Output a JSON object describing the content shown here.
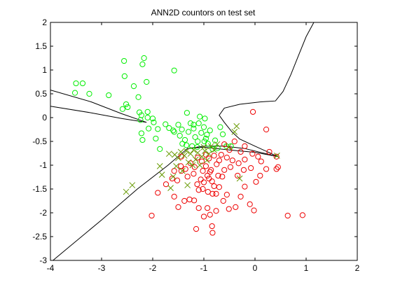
{
  "chart_data": {
    "type": "scatter",
    "title": "ANN2D countors on test set",
    "xlabel": "",
    "ylabel": "",
    "xlim": [
      -4,
      2
    ],
    "ylim": [
      -3,
      2
    ],
    "xticks": [
      -4,
      -3,
      -2,
      -1,
      0,
      1,
      2
    ],
    "yticks": [
      2,
      1.5,
      1,
      0.5,
      0,
      -0.5,
      -1,
      -1.5,
      -2,
      -2.5,
      -3
    ],
    "grid": false,
    "legend": "none",
    "colors": {
      "green": "#00ee00",
      "red": "#ee0000",
      "cross": "#669900",
      "contour": "#000000"
    },
    "series": [
      {
        "marker": "circle",
        "color": "#00ee00",
        "points": [
          [
            -3.5,
            0.72
          ],
          [
            -3.37,
            0.72
          ],
          [
            -3.52,
            0.52
          ],
          [
            -3.24,
            0.5
          ],
          [
            -2.86,
            0.47
          ],
          [
            -2.56,
            1.19
          ],
          [
            -2.17,
            1.25
          ],
          [
            -2.2,
            1.12
          ],
          [
            -2.55,
            0.87
          ],
          [
            -1.58,
            0.99
          ],
          [
            -2.12,
            0.75
          ],
          [
            -2.37,
            0.66
          ],
          [
            -2.52,
            0.28
          ],
          [
            -2.28,
            0.43
          ],
          [
            -2.59,
            0.18
          ],
          [
            -2.49,
            0.22
          ],
          [
            -2.26,
            0.11
          ],
          [
            -2.22,
            0.05
          ],
          [
            -2.24,
            -0.05
          ],
          [
            -2.1,
            0.12
          ],
          [
            -2.1,
            0.0
          ],
          [
            -2.0,
            -0.02
          ],
          [
            -1.98,
            -0.1
          ],
          [
            -2.22,
            -0.33
          ],
          [
            -2.2,
            -0.47
          ],
          [
            -2.08,
            -0.23
          ],
          [
            -1.94,
            -0.44
          ],
          [
            -1.86,
            -0.66
          ],
          [
            -1.9,
            -0.24
          ],
          [
            -1.75,
            -0.14
          ],
          [
            -1.68,
            -0.22
          ],
          [
            -1.6,
            -0.27
          ],
          [
            -1.58,
            -0.3
          ],
          [
            -1.5,
            -0.15
          ],
          [
            -1.43,
            -0.25
          ],
          [
            -1.47,
            -0.38
          ],
          [
            -1.37,
            -0.47
          ],
          [
            -1.34,
            -0.58
          ],
          [
            -1.3,
            -0.3
          ],
          [
            -1.26,
            -0.12
          ],
          [
            -1.33,
            0.1
          ],
          [
            -1.2,
            -0.23
          ],
          [
            -1.17,
            -0.41
          ],
          [
            -1.12,
            -0.5
          ],
          [
            -1.05,
            -0.32
          ],
          [
            -1.0,
            -0.2
          ],
          [
            -1.08,
            0.02
          ],
          [
            -0.98,
            -0.02
          ],
          [
            -0.96,
            -0.44
          ],
          [
            -0.92,
            -0.55
          ],
          [
            -0.88,
            -0.27
          ],
          [
            -0.83,
            -0.66
          ],
          [
            -0.78,
            -0.48
          ],
          [
            -0.73,
            -0.64
          ],
          [
            -0.68,
            -0.2
          ],
          [
            -0.63,
            -0.35
          ],
          [
            -0.56,
            -0.6
          ],
          [
            -0.47,
            -0.6
          ],
          [
            -1.13,
            -0.62
          ],
          [
            -1.23,
            -0.6
          ],
          [
            -1.42,
            -0.55
          ],
          [
            -0.94,
            -0.36
          ],
          [
            -1.1,
            -0.12
          ],
          [
            -1.2,
            -0.15
          ],
          [
            -0.99,
            -0.5
          ]
        ]
      },
      {
        "marker": "circle",
        "color": "#ee0000",
        "points": [
          [
            -0.04,
            0.12
          ],
          [
            0.22,
            -0.25
          ],
          [
            -0.2,
            -0.6
          ],
          [
            -0.05,
            -0.76
          ],
          [
            0.06,
            -0.82
          ],
          [
            0.12,
            -0.92
          ],
          [
            0.28,
            -0.72
          ],
          [
            0.42,
            -0.82
          ],
          [
            0.45,
            -1.04
          ],
          [
            0.42,
            -1.08
          ],
          [
            0.22,
            -1.08
          ],
          [
            0.1,
            -1.22
          ],
          [
            0.02,
            -1.35
          ],
          [
            -0.08,
            -1.06
          ],
          [
            -0.22,
            -1.1
          ],
          [
            -0.34,
            -1.22
          ],
          [
            -0.48,
            -1.04
          ],
          [
            -0.6,
            -1.1
          ],
          [
            -0.64,
            -1.24
          ],
          [
            -0.75,
            -0.98
          ],
          [
            -0.86,
            -1.1
          ],
          [
            -0.93,
            -1.22
          ],
          [
            -1.02,
            -1.12
          ],
          [
            -1.06,
            -1.3
          ],
          [
            -1.13,
            -1.4
          ],
          [
            -1.02,
            -1.5
          ],
          [
            -0.92,
            -1.56
          ],
          [
            -0.83,
            -1.6
          ],
          [
            -0.76,
            -1.6
          ],
          [
            -0.7,
            -1.46
          ],
          [
            -0.62,
            -1.75
          ],
          [
            -0.55,
            -1.62
          ],
          [
            -0.51,
            -1.92
          ],
          [
            -0.38,
            -1.88
          ],
          [
            -0.28,
            -1.66
          ],
          [
            -0.2,
            -1.45
          ],
          [
            -0.1,
            -1.82
          ],
          [
            -0.02,
            -1.95
          ],
          [
            0.93,
            -2.05
          ],
          [
            0.64,
            -2.06
          ],
          [
            -0.76,
            -1.96
          ],
          [
            -0.88,
            -2.04
          ],
          [
            -0.93,
            -1.9
          ],
          [
            -1.0,
            -2.08
          ],
          [
            -1.1,
            -1.9
          ],
          [
            -1.19,
            -1.74
          ],
          [
            -1.28,
            -1.72
          ],
          [
            -1.38,
            -1.75
          ],
          [
            -1.5,
            -1.88
          ],
          [
            -1.58,
            -1.66
          ],
          [
            -1.52,
            -1.32
          ],
          [
            -1.74,
            -1.4
          ],
          [
            -1.9,
            -1.58
          ],
          [
            -2.02,
            -2.06
          ],
          [
            -1.15,
            -2.34
          ],
          [
            -0.83,
            -2.42
          ],
          [
            -0.84,
            -2.28
          ],
          [
            -1.36,
            -1.08
          ],
          [
            -1.26,
            -0.96
          ],
          [
            -1.18,
            -1.04
          ],
          [
            -1.12,
            -0.84
          ],
          [
            -1.04,
            -0.92
          ],
          [
            -0.96,
            -0.78
          ],
          [
            -0.9,
            -0.86
          ],
          [
            -0.8,
            -0.8
          ],
          [
            -0.7,
            -0.9
          ],
          [
            -0.66,
            -0.78
          ],
          [
            -0.55,
            -0.84
          ],
          [
            -0.44,
            -0.9
          ],
          [
            -0.32,
            -0.96
          ],
          [
            -0.2,
            -0.88
          ],
          [
            -0.96,
            -1.02
          ],
          [
            -1.2,
            -1.18
          ],
          [
            -1.32,
            -1.24
          ],
          [
            -1.44,
            -1.12
          ],
          [
            -1.0,
            -1.36
          ],
          [
            -0.84,
            -1.34
          ],
          [
            -0.72,
            -1.22
          ],
          [
            -1.1,
            -1.52
          ],
          [
            -0.9,
            -1.28
          ],
          [
            -0.8,
            -1.44
          ],
          [
            -1.45,
            -1.02
          ],
          [
            -1.58,
            -1.12
          ],
          [
            -1.62,
            -1.28
          ],
          [
            -0.4,
            -0.5
          ],
          [
            -0.6,
            -0.56
          ],
          [
            -0.28,
            -0.72
          ],
          [
            -0.5,
            -0.68
          ],
          [
            -1.44,
            -0.82
          ],
          [
            -0.88,
            -1.14
          ]
        ]
      },
      {
        "marker": "x",
        "color": "#669900",
        "points": [
          [
            -2.4,
            -1.42
          ],
          [
            -2.52,
            -1.56
          ],
          [
            -1.86,
            -1.02
          ],
          [
            -1.82,
            -1.2
          ],
          [
            -1.68,
            -0.76
          ],
          [
            -1.6,
            -1.24
          ],
          [
            -1.57,
            -0.78
          ],
          [
            -1.5,
            -0.85
          ],
          [
            -1.45,
            -0.72
          ],
          [
            -1.38,
            -0.8
          ],
          [
            -1.34,
            -0.7
          ],
          [
            -1.3,
            -0.94
          ],
          [
            -1.26,
            -0.76
          ],
          [
            -1.2,
            -0.68
          ],
          [
            -1.16,
            -0.88
          ],
          [
            -1.12,
            -0.74
          ],
          [
            -1.08,
            -1.0
          ],
          [
            -1.04,
            -0.82
          ],
          [
            -0.98,
            -0.7
          ],
          [
            -0.94,
            -0.9
          ],
          [
            -0.9,
            -0.76
          ],
          [
            -0.86,
            -0.6
          ],
          [
            -0.8,
            -0.68
          ],
          [
            -0.74,
            -0.56
          ],
          [
            -0.52,
            -0.62
          ],
          [
            -0.4,
            -0.3
          ],
          [
            -0.36,
            -0.18
          ],
          [
            -0.3,
            -1.28
          ],
          [
            -1.65,
            -1.48
          ],
          [
            -1.42,
            -1.12
          ],
          [
            -1.22,
            -1.0
          ],
          [
            -1.32,
            -1.42
          ],
          [
            0.43,
            -0.8
          ],
          [
            -1.0,
            -0.62
          ],
          [
            -1.54,
            -1.02
          ]
        ]
      }
    ]
  }
}
